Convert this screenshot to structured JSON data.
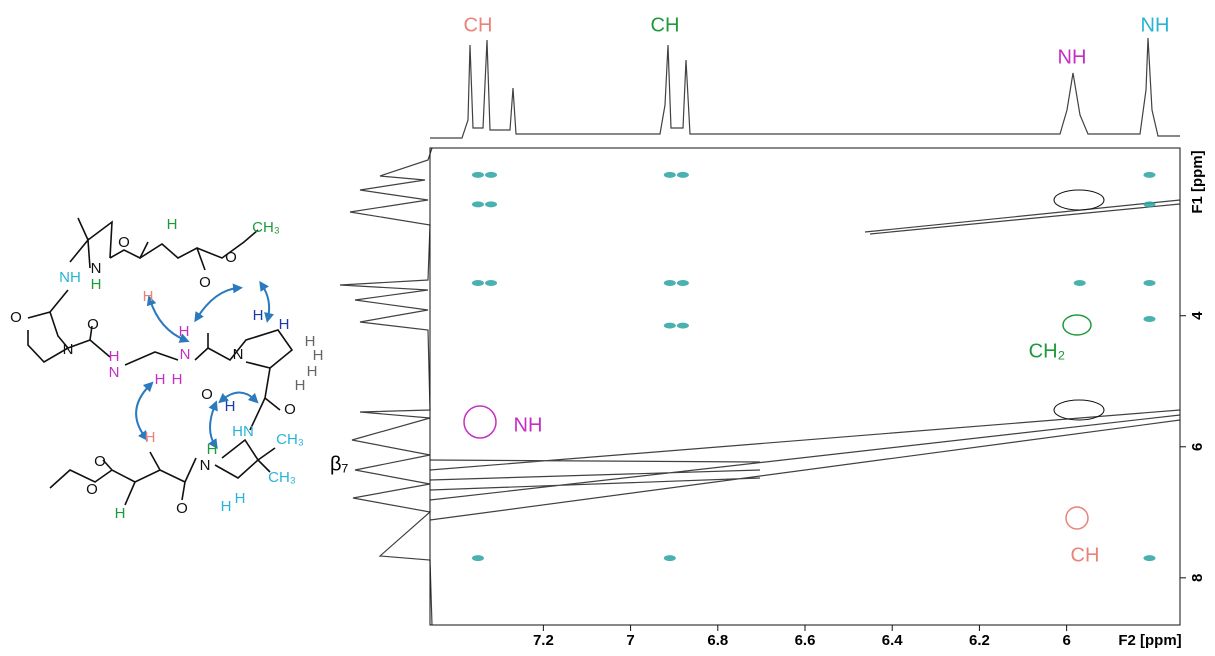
{
  "chart_data": {
    "type": "contour",
    "x_label": "F2 [ppm]",
    "y_label": "F1 [ppm]",
    "xlim": [
      7.46,
      5.74
    ],
    "xticks": [
      7.2,
      7.0,
      6.8,
      6.6,
      6.4,
      6.2,
      6.0
    ],
    "ylim": [
      1.44,
      8.72
    ],
    "yticks": [
      4,
      6,
      8
    ],
    "peaks": {
      "color": "#2aa3a3",
      "x": [
        7.35,
        7.32,
        7.35,
        7.32,
        7.35,
        7.32,
        6.91,
        6.88,
        6.91,
        6.88,
        6.91,
        6.88,
        5.97,
        5.81,
        5.81,
        5.81,
        5.81,
        5.81,
        6.91,
        7.35
      ],
      "y": [
        1.85,
        1.85,
        2.3,
        2.3,
        3.5,
        3.5,
        1.85,
        1.85,
        3.5,
        3.5,
        4.15,
        4.15,
        3.5,
        1.85,
        2.3,
        3.5,
        4.05,
        7.7,
        7.7,
        7.7
      ]
    },
    "top_labels": [
      {
        "text": "CH",
        "color": "#e8837a"
      },
      {
        "text": "CH",
        "color": "#1e9a3a"
      },
      {
        "text": "NH",
        "color": "#c42fc4"
      },
      {
        "text": "NH",
        "color": "#29b3d8"
      }
    ],
    "annotations": [
      {
        "text": "NH",
        "color": "#c42fc4"
      },
      {
        "text": "CH₂",
        "color": "#1e9a3a"
      },
      {
        "text": "CH",
        "color": "#e8837a"
      }
    ]
  },
  "molecule": {
    "label": "β₇",
    "atoms": [
      "O",
      "N",
      "H",
      "H",
      "H",
      "O",
      "O",
      "CH₃",
      "NH",
      "O",
      "N",
      "O",
      "N",
      "H",
      "H",
      "N",
      "H",
      "H",
      "O",
      "N",
      "H",
      "H",
      "H",
      "H",
      "H",
      "H",
      "H",
      "O",
      "HN",
      "H",
      "N",
      "H",
      "CH₃",
      "CH₃",
      "O",
      "O",
      "H",
      "O",
      "H",
      "H"
    ]
  }
}
